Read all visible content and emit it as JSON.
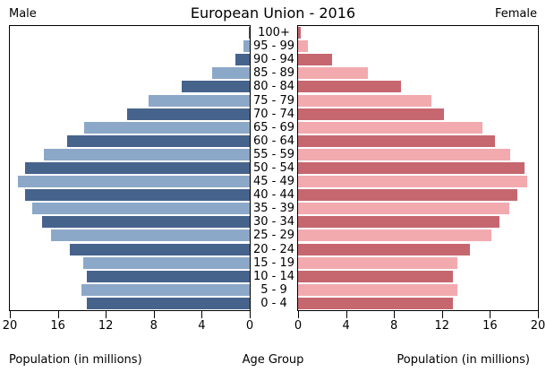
{
  "header": {
    "title": "European Union - 2016",
    "male_label": "Male",
    "female_label": "Female"
  },
  "footer": {
    "left_axis_label": "Population (in millions)",
    "center_label": "Age Group",
    "right_axis_label": "Population (in millions)"
  },
  "colors": {
    "male_dark": "#46638c",
    "male_light": "#8ca8c8",
    "female_dark": "#c66770",
    "female_light": "#f2aaaf",
    "frame": "#000000"
  },
  "axes": {
    "male_ticks": [
      20,
      16,
      12,
      8,
      4,
      0
    ],
    "female_ticks": [
      0,
      4,
      8,
      12,
      16,
      20
    ],
    "max": 20
  },
  "chart_data": {
    "type": "bar",
    "subtype": "population-pyramid",
    "title": "European Union - 2016",
    "xlabel": "Population (in millions)",
    "center_label": "Age Group",
    "xlim": [
      0,
      20
    ],
    "grid": false,
    "age_groups": [
      "0 - 4",
      "5 - 9",
      "10 - 14",
      "15 - 19",
      "20 - 24",
      "25 - 29",
      "30 - 34",
      "35 - 39",
      "40 - 44",
      "45 - 49",
      "50 - 54",
      "55 - 59",
      "60 - 64",
      "65 - 69",
      "70 - 74",
      "75 - 79",
      "80 - 84",
      "85 - 89",
      "90 - 94",
      "95 - 99",
      "100+"
    ],
    "series": [
      {
        "name": "Male",
        "side": "left",
        "values": [
          13.6,
          14.0,
          13.6,
          13.9,
          15.0,
          16.6,
          17.3,
          18.1,
          18.7,
          19.3,
          18.7,
          17.2,
          15.2,
          13.8,
          10.2,
          8.4,
          5.7,
          3.1,
          1.2,
          0.5,
          0.08
        ]
      },
      {
        "name": "Female",
        "side": "right",
        "values": [
          12.9,
          13.3,
          12.9,
          13.3,
          14.3,
          16.1,
          16.8,
          17.6,
          18.3,
          19.1,
          18.9,
          17.7,
          16.4,
          15.4,
          12.2,
          11.1,
          8.6,
          5.8,
          2.8,
          0.8,
          0.2
        ]
      }
    ]
  }
}
